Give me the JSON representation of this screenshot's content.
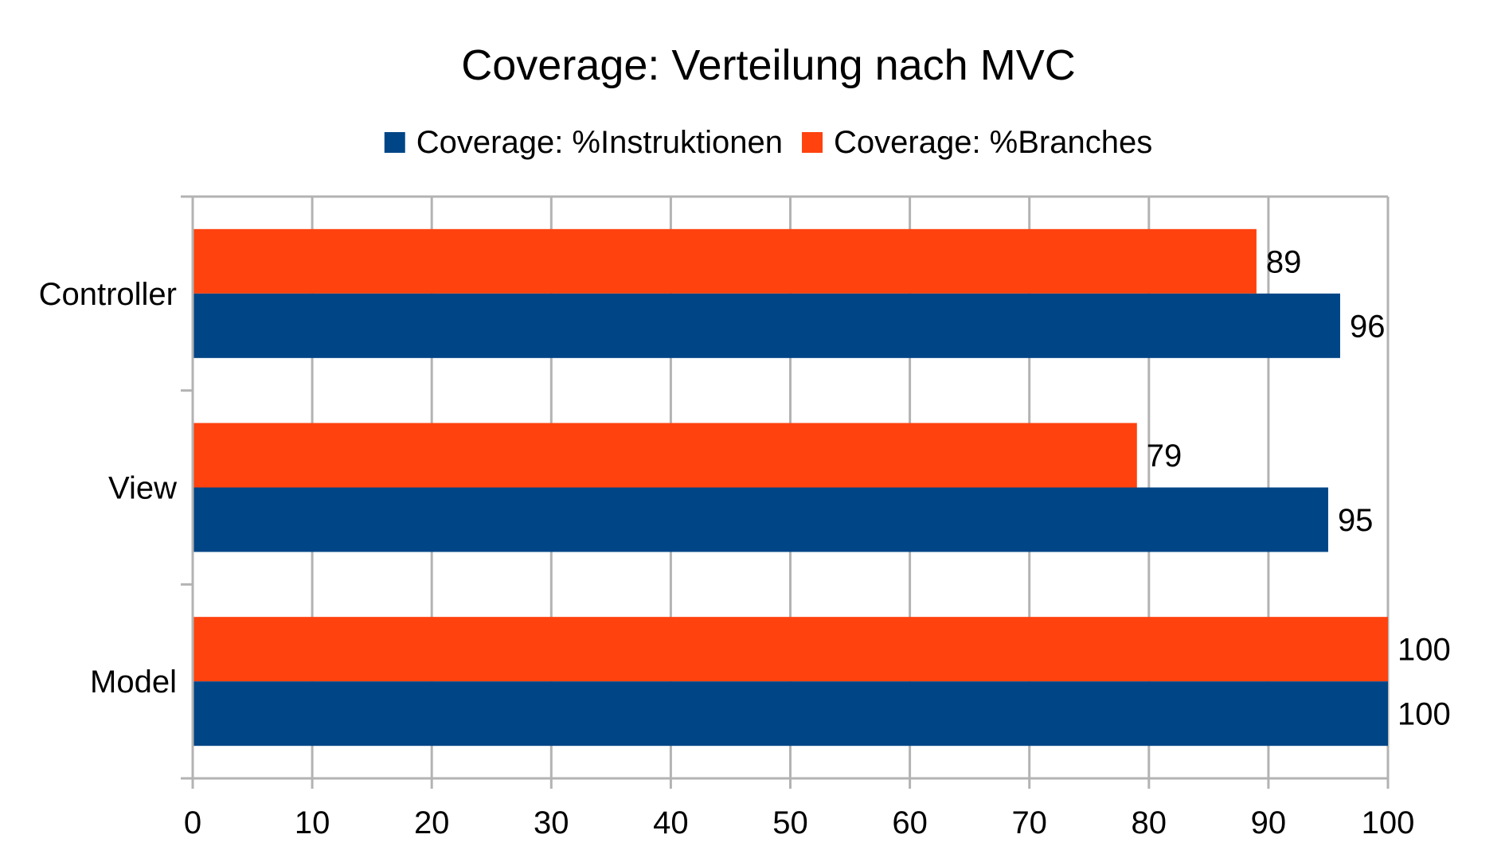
{
  "chart_data": {
    "type": "bar",
    "orientation": "horizontal",
    "title": "Coverage: Verteilung nach MVC",
    "xlabel": "",
    "ylabel": "",
    "categories": [
      "Controller",
      "View",
      "Model"
    ],
    "series": [
      {
        "name": "Coverage: %Instruktionen",
        "color": "#004586",
        "values": [
          96,
          95,
          100
        ]
      },
      {
        "name": "Coverage: %Branches",
        "color": "#ff420e",
        "values": [
          89,
          79,
          100
        ]
      }
    ],
    "xlim": [
      0,
      100
    ],
    "xticks": [
      0,
      10,
      20,
      30,
      40,
      50,
      60,
      70,
      80,
      90,
      100
    ],
    "grid": true,
    "legend": "top",
    "data_labels": true
  }
}
